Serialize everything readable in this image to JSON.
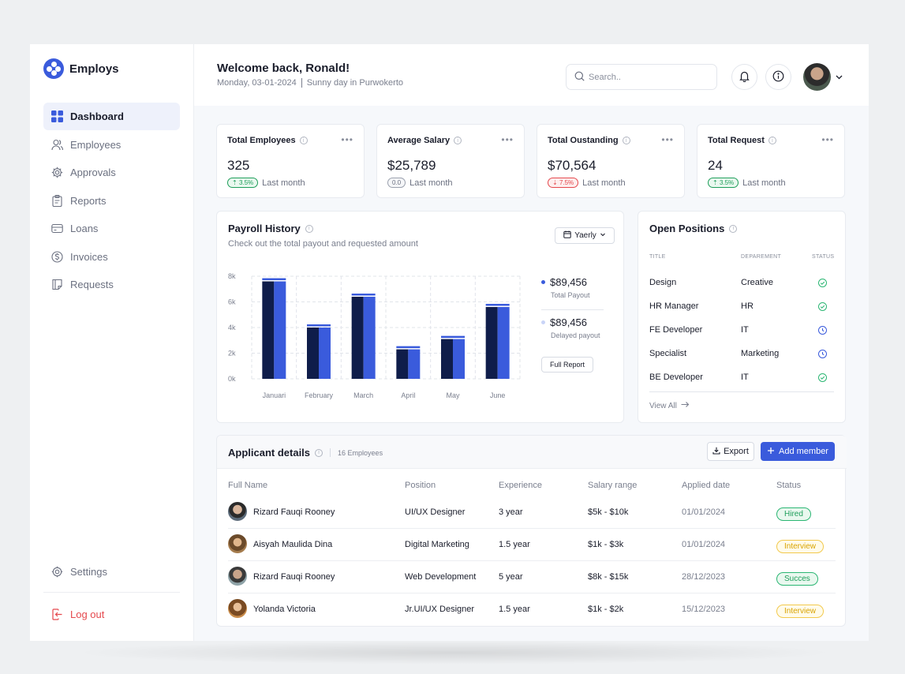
{
  "app": {
    "name": "Employs"
  },
  "sidebar": {
    "items": [
      {
        "label": "Dashboard",
        "icon": "grid-icon",
        "active": true
      },
      {
        "label": "Employees",
        "icon": "users-icon"
      },
      {
        "label": "Approvals",
        "icon": "gear-icon"
      },
      {
        "label": "Reports",
        "icon": "clipboard-icon"
      },
      {
        "label": "Loans",
        "icon": "card-icon"
      },
      {
        "label": "Invoices",
        "icon": "dollar-icon"
      },
      {
        "label": "Requests",
        "icon": "note-icon"
      }
    ],
    "settings_label": "Settings",
    "logout_label": "Log out"
  },
  "header": {
    "welcome": "Welcome back, Ronald!",
    "date": "Monday, 03-01-2024",
    "weather": "Sunny day in Purwokerto",
    "search_placeholder": "Search.."
  },
  "stats": [
    {
      "title": "Total Employees",
      "value": "325",
      "change": "3.5%",
      "trend": "up",
      "period": "Last month"
    },
    {
      "title": "Average Salary",
      "value": "$25,789",
      "change": "0.0",
      "trend": "flat",
      "period": "Last month"
    },
    {
      "title": "Total Oustanding",
      "value": "$70,564",
      "change": "7.5%",
      "trend": "down",
      "period": "Last month"
    },
    {
      "title": "Total Request",
      "value": "24",
      "change": "3.5%",
      "trend": "up",
      "period": "Last month"
    }
  ],
  "payroll": {
    "title": "Payroll History",
    "subtitle": "Check out the total payout and requested amount",
    "period_label": "Yaerly",
    "total_payout_value": "$89,456",
    "total_payout_label": "Total Payout",
    "delayed_payout_value": "$89,456",
    "delayed_payout_label": "Delayed payout",
    "full_report_label": "Full Report",
    "colors": {
      "dark": "#0f1d4a",
      "blue": "#3a5bdc",
      "light": "#c9d4f7"
    }
  },
  "chart_data": {
    "type": "bar",
    "categories": [
      "Januari",
      "February",
      "March",
      "April",
      "May",
      "June"
    ],
    "series": [
      {
        "name": "Total Payout",
        "values": [
          7.6,
          4.0,
          6.4,
          2.3,
          3.1,
          5.6
        ]
      }
    ],
    "yticks": [
      "8k",
      "6k",
      "4k",
      "2k",
      "0k"
    ],
    "ylim": [
      0,
      8
    ],
    "grid": true
  },
  "positions": {
    "title": "Open Positions",
    "headers": [
      "TITLE",
      "DEPAREMENT",
      "STATUS"
    ],
    "rows": [
      {
        "title": "Design",
        "department": "Creative",
        "status": "check-icon"
      },
      {
        "title": "HR Manager",
        "department": "HR",
        "status": "check-icon"
      },
      {
        "title": "FE Developer",
        "department": "IT",
        "status": "clock-icon"
      },
      {
        "title": "Specialist",
        "department": "Marketing",
        "status": "clock-icon"
      },
      {
        "title": "BE Developer",
        "department": "IT",
        "status": "check-icon"
      }
    ],
    "view_all": "View All"
  },
  "applicants": {
    "title": "Applicant details",
    "count": "16 Employees",
    "export_label": "Export",
    "add_label": "Add member",
    "headers": [
      "Full Name",
      "Position",
      "Experience",
      "Salary range",
      "Applied date",
      "Status"
    ],
    "rows": [
      {
        "name": "Rizard Fauqi Rooney",
        "position": "UI/UX Designer",
        "experience": "3 year",
        "salary": "$5k - $10k",
        "date": "01/01/2024",
        "status": "Hired",
        "kind": "hired"
      },
      {
        "name": "Aisyah Maulida Dina",
        "position": "Digital Marketing",
        "experience": "1.5 year",
        "salary": "$1k - $3k",
        "date": "01/01/2024",
        "status": "Interview",
        "kind": "interview"
      },
      {
        "name": "Rizard Fauqi Rooney",
        "position": "Web Development",
        "experience": "5 year",
        "salary": "$8k - $15k",
        "date": "28/12/2023",
        "status": "Succes",
        "kind": "succes"
      },
      {
        "name": "Yolanda Victoria",
        "position": "Jr.UI/UX Designer",
        "experience": "1.5 year",
        "salary": "$1k - $2k",
        "date": "15/12/2023",
        "status": "Interview",
        "kind": "interview"
      }
    ]
  }
}
